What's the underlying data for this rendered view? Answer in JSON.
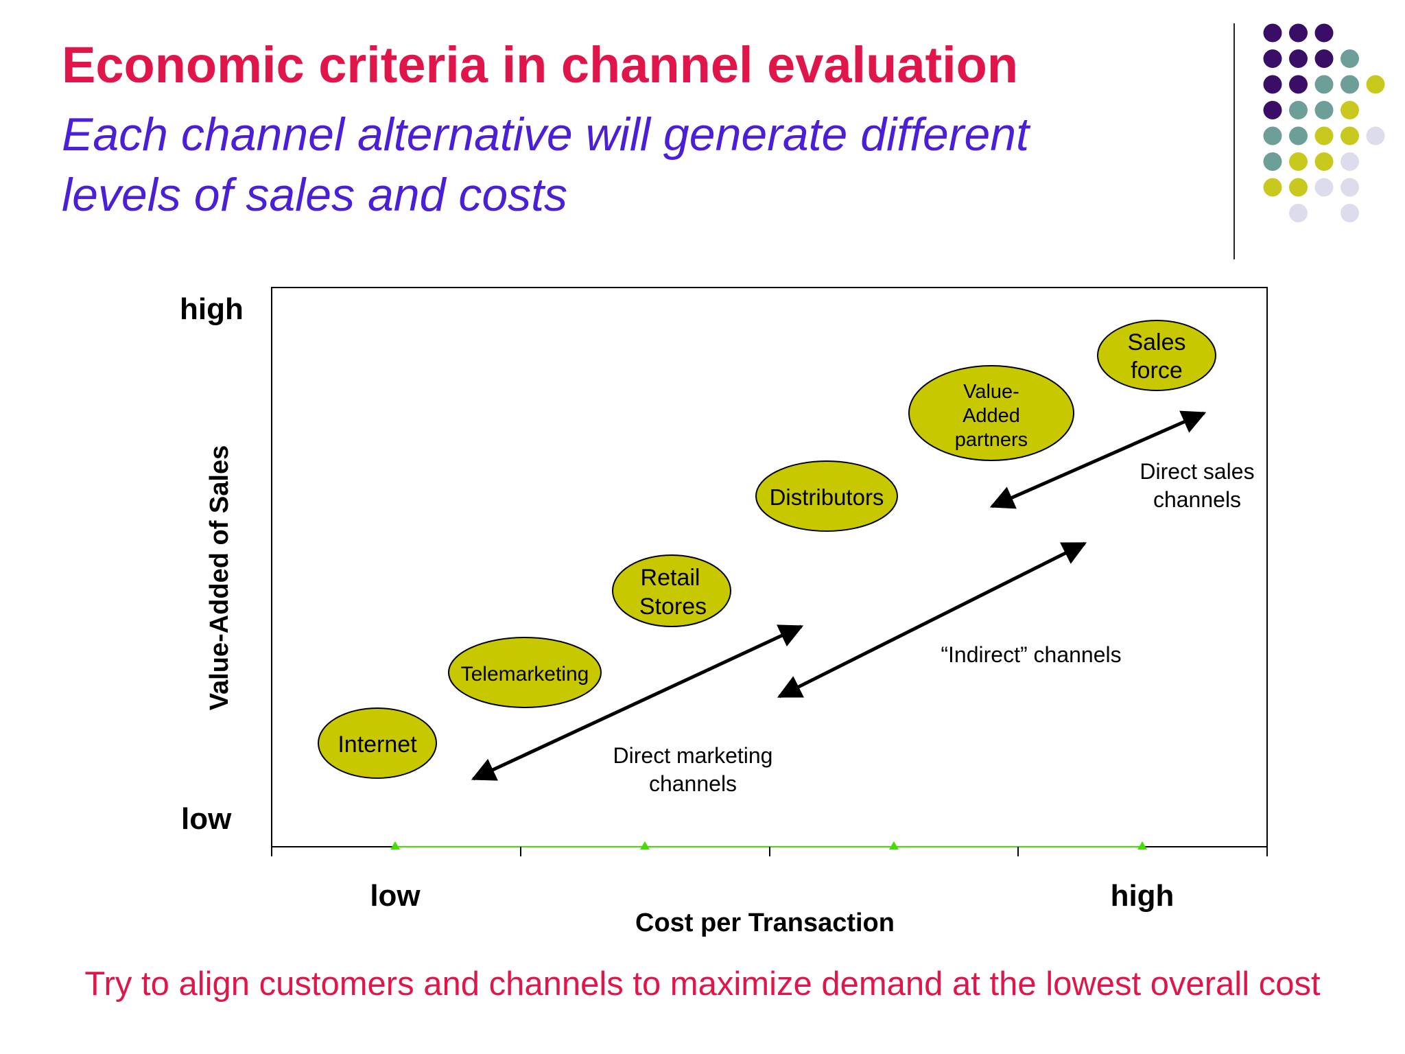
{
  "slide": {
    "title": "Economic criteria in channel evaluation",
    "subtitle_lines": [
      "Each channel alternative will generate different",
      "levels of sales and costs"
    ],
    "footer": "Try to align customers and channels to maximize demand at the lowest overall cost"
  },
  "colors": {
    "title": "#e0164a",
    "subtitle": "#4a1fd6",
    "footer": "#e0164a",
    "ellipse_fill": "#c8c800",
    "axis_line": "#44dd00",
    "dot_purple": "#3a0e66",
    "dot_teal": "#6e9e98",
    "dot_yellow": "#c8c81e",
    "dot_lavender": "#dcdcec"
  },
  "decoration": {
    "dot_rows": [
      [
        "purple",
        "purple",
        "purple"
      ],
      [
        "purple",
        "purple",
        "purple",
        "teal"
      ],
      [
        "purple",
        "purple",
        "teal",
        "teal",
        "yellow"
      ],
      [
        "purple",
        "teal",
        "teal",
        "yellow"
      ],
      [
        "teal",
        "teal",
        "yellow",
        "yellow",
        "lavender"
      ],
      [
        "teal",
        "yellow",
        "yellow",
        "lavender"
      ],
      [
        "yellow",
        "yellow",
        "lavender",
        "lavender"
      ],
      [
        "",
        "lavender",
        "",
        "lavender"
      ]
    ]
  },
  "chart_data": {
    "type": "diagram",
    "xlabel": "Cost per Transaction",
    "ylabel": "Value-Added of Sales",
    "x_tick_labels": [
      "low",
      "high"
    ],
    "y_tick_labels": [
      "high",
      "low"
    ],
    "channels": [
      {
        "label_lines": [
          "Internet"
        ]
      },
      {
        "label_lines": [
          "Telemarketing"
        ]
      },
      {
        "label_lines": [
          "Retail",
          "Stores"
        ]
      },
      {
        "label_lines": [
          "Distributors"
        ]
      },
      {
        "label_lines": [
          "Value-",
          "Added",
          "partners"
        ]
      },
      {
        "label_lines": [
          "Sales",
          "force"
        ]
      }
    ],
    "channel_groups": [
      {
        "label_lines": [
          "Direct  marketing",
          "channels"
        ]
      },
      {
        "label_lines": [
          "“Indirect” channels"
        ]
      },
      {
        "label_lines": [
          "Direct sales",
          "channels"
        ]
      }
    ]
  }
}
